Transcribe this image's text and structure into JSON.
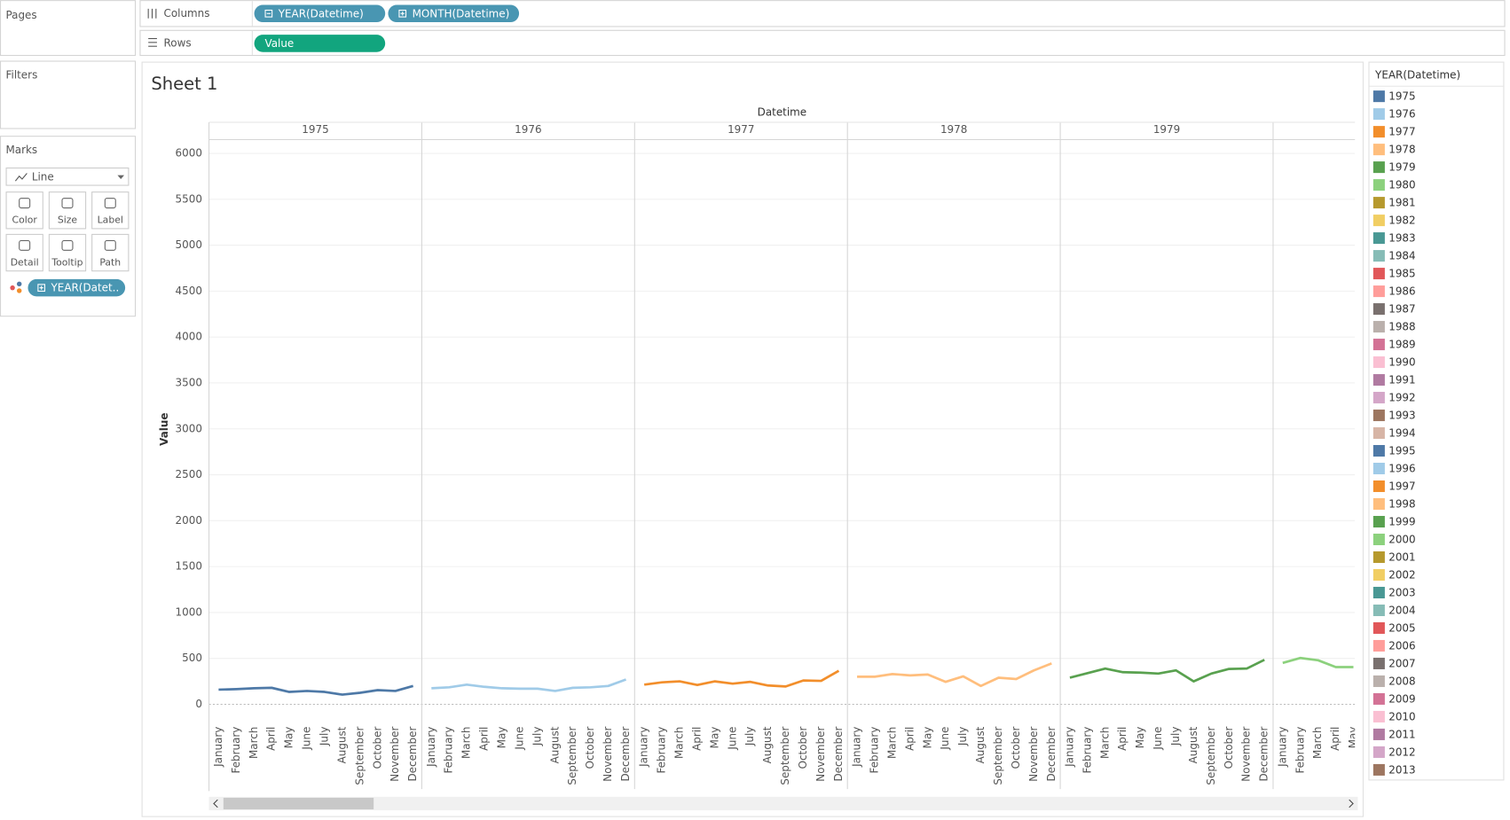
{
  "ui": {
    "pages": "Pages",
    "columns": {
      "label": "Columns",
      "pills": [
        "YEAR(Datetime)",
        "MONTH(Datetime)"
      ]
    },
    "rows": {
      "label": "Rows",
      "pills": [
        "Value"
      ]
    },
    "filters": "Filters",
    "marks": {
      "title": "Marks",
      "type": "Line",
      "buttons": [
        "Color",
        "Size",
        "Label",
        "Detail",
        "Tooltip",
        "Path"
      ],
      "pill": "YEAR(Datet.."
    },
    "sheet_title": "Sheet 1"
  },
  "chart_data": {
    "type": "line",
    "x_title": "Datetime",
    "y_title": "Value",
    "categories": [
      "January",
      "February",
      "March",
      "April",
      "May",
      "June",
      "July",
      "August",
      "September",
      "October",
      "November",
      "December"
    ],
    "series": [
      {
        "name": "1975",
        "color": "#4e79a7",
        "values": [
          160,
          165,
          175,
          180,
          135,
          145,
          135,
          105,
          125,
          155,
          145,
          200
        ]
      },
      {
        "name": "1976",
        "color": "#a0cbe8",
        "values": [
          175,
          185,
          215,
          190,
          175,
          170,
          170,
          145,
          180,
          185,
          200,
          270
        ]
      },
      {
        "name": "1977",
        "color": "#f28e2b",
        "values": [
          215,
          240,
          250,
          210,
          250,
          225,
          245,
          205,
          195,
          260,
          255,
          365
        ]
      },
      {
        "name": "1978",
        "color": "#ffbe7d",
        "values": [
          300,
          300,
          330,
          315,
          325,
          245,
          305,
          200,
          290,
          275,
          370,
          445
        ]
      },
      {
        "name": "1979",
        "color": "#59a14f",
        "values": [
          290,
          340,
          390,
          350,
          345,
          335,
          370,
          250,
          335,
          385,
          390,
          485
        ]
      },
      {
        "name": "1980",
        "color": "#8cd17d",
        "values": [
          450,
          505,
          480,
          405,
          405,
          null,
          null,
          null,
          null,
          null,
          null,
          null
        ]
      }
    ],
    "ylim": [
      -190,
      6150
    ],
    "yticks": [
      0,
      500,
      1000,
      1500,
      2000,
      2500,
      3000,
      3500,
      4000,
      4500,
      5000,
      5500,
      6000
    ],
    "grid": true
  },
  "legend": {
    "title": "YEAR(Datetime)",
    "items": [
      {
        "label": "1975",
        "color": "#4e79a7"
      },
      {
        "label": "1976",
        "color": "#a0cbe8"
      },
      {
        "label": "1977",
        "color": "#f28e2b"
      },
      {
        "label": "1978",
        "color": "#ffbe7d"
      },
      {
        "label": "1979",
        "color": "#59a14f"
      },
      {
        "label": "1980",
        "color": "#8cd17d"
      },
      {
        "label": "1981",
        "color": "#b6992d"
      },
      {
        "label": "1982",
        "color": "#f1ce63"
      },
      {
        "label": "1983",
        "color": "#499894"
      },
      {
        "label": "1984",
        "color": "#86bcb6"
      },
      {
        "label": "1985",
        "color": "#e15759"
      },
      {
        "label": "1986",
        "color": "#ff9d9a"
      },
      {
        "label": "1987",
        "color": "#79706e"
      },
      {
        "label": "1988",
        "color": "#bab0ac"
      },
      {
        "label": "1989",
        "color": "#d37295"
      },
      {
        "label": "1990",
        "color": "#fabfd2"
      },
      {
        "label": "1991",
        "color": "#b07aa1"
      },
      {
        "label": "1992",
        "color": "#d4a6c8"
      },
      {
        "label": "1993",
        "color": "#9d7660"
      },
      {
        "label": "1994",
        "color": "#d7b5a6"
      },
      {
        "label": "1995",
        "color": "#4e79a7"
      },
      {
        "label": "1996",
        "color": "#a0cbe8"
      },
      {
        "label": "1997",
        "color": "#f28e2b"
      },
      {
        "label": "1998",
        "color": "#ffbe7d"
      },
      {
        "label": "1999",
        "color": "#59a14f"
      },
      {
        "label": "2000",
        "color": "#8cd17d"
      },
      {
        "label": "2001",
        "color": "#b6992d"
      },
      {
        "label": "2002",
        "color": "#f1ce63"
      },
      {
        "label": "2003",
        "color": "#499894"
      },
      {
        "label": "2004",
        "color": "#86bcb6"
      },
      {
        "label": "2005",
        "color": "#e15759"
      },
      {
        "label": "2006",
        "color": "#ff9d9a"
      },
      {
        "label": "2007",
        "color": "#79706e"
      },
      {
        "label": "2008",
        "color": "#bab0ac"
      },
      {
        "label": "2009",
        "color": "#d37295"
      },
      {
        "label": "2010",
        "color": "#fabfd2"
      },
      {
        "label": "2011",
        "color": "#b07aa1"
      },
      {
        "label": "2012",
        "color": "#d4a6c8"
      },
      {
        "label": "2013",
        "color": "#9d7660"
      }
    ]
  }
}
